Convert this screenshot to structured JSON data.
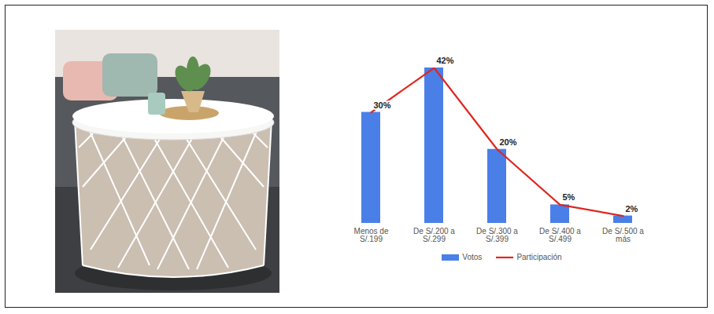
{
  "chart_data": {
    "type": "bar",
    "categories": [
      "Menos de S/.199",
      "De S/.200 a S/.299",
      "De S/.300 a S/.399",
      "De S/.400 a S/.499",
      "De S/.500 a más"
    ],
    "series": [
      {
        "name": "Votos",
        "type": "bar",
        "color": "#4a7fe8",
        "values": [
          30,
          42,
          20,
          5,
          2
        ]
      },
      {
        "name": "Participación",
        "type": "line",
        "color": "#e0261d",
        "values": [
          30,
          42,
          20,
          5,
          2
        ],
        "value_labels": [
          "30%",
          "42%",
          "20%",
          "5%",
          "2%"
        ]
      }
    ],
    "data_labels": true,
    "legend": "bottom",
    "tick_labels": "x"
  }
}
